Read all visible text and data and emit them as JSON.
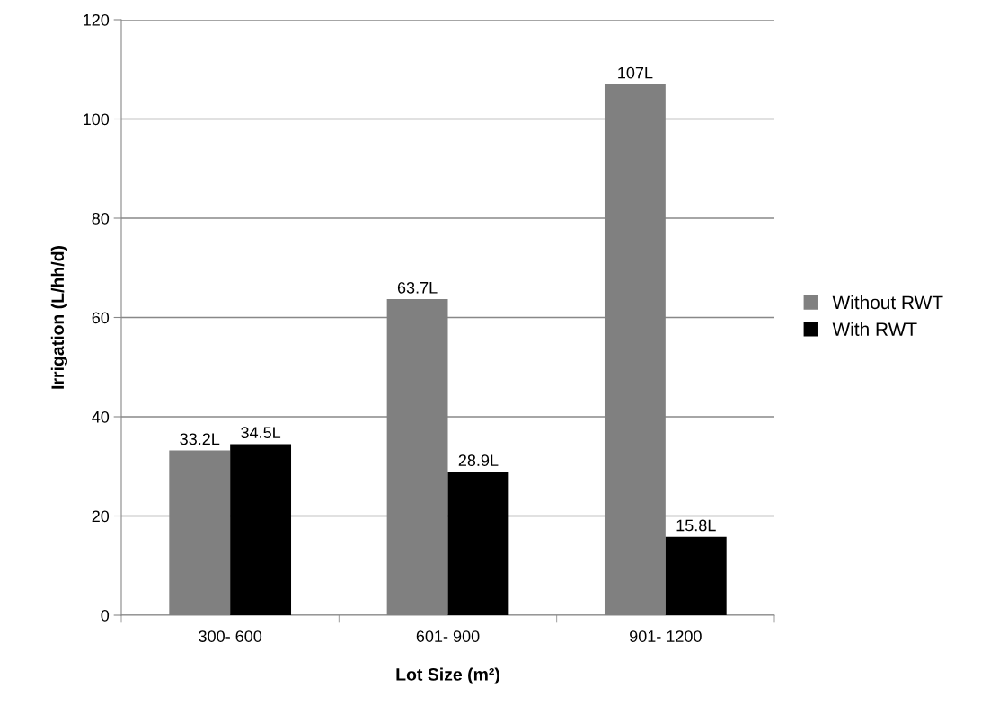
{
  "chart_data": {
    "type": "bar",
    "xlabel": "Lot Size (m²)",
    "ylabel": "Irrigation (L/hh/d)",
    "categories": [
      "300- 600",
      "601- 900",
      "901- 1200"
    ],
    "series": [
      {
        "name": "Without RWT",
        "color": "#808080",
        "values": [
          33.2,
          63.7,
          107
        ],
        "value_labels": [
          "33.2L",
          "63.7L",
          "107L"
        ]
      },
      {
        "name": "With RWT",
        "color": "#000000",
        "values": [
          34.5,
          28.9,
          15.8
        ],
        "value_labels": [
          "34.5L",
          "28.9L",
          "15.8L"
        ]
      }
    ],
    "ylim": [
      0,
      120
    ],
    "yticks": [
      0,
      20,
      40,
      60,
      80,
      100,
      120
    ],
    "grid": "y",
    "legend": "right"
  }
}
